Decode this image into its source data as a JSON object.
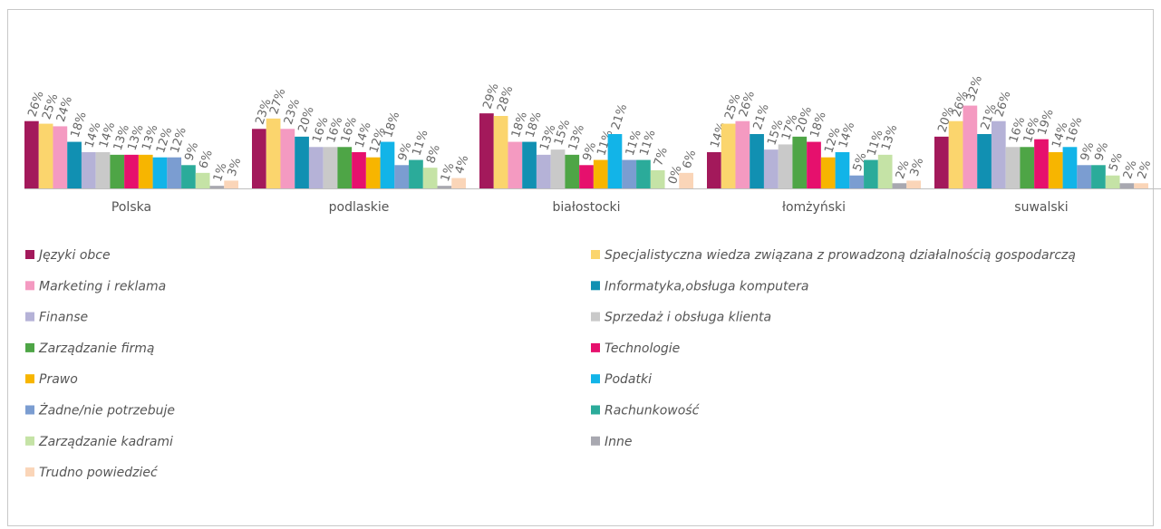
{
  "chart_data": {
    "type": "bar",
    "categories": [
      "Polska",
      "podlaskie",
      "białostocki",
      "łomżyński",
      "suwalski"
    ],
    "ylim": [
      0,
      35
    ],
    "series": [
      {
        "name": "Języki obce",
        "color": "#a3195b",
        "values": [
          26,
          23,
          29,
          14,
          20
        ],
        "value_labels": [
          "26%",
          "23%",
          "29%",
          "14%",
          "20%"
        ]
      },
      {
        "name": "Specjalistyczna wiedza związana z prowadzoną działalnością gospodarczą",
        "color": "#fbd56d",
        "values": [
          25,
          27,
          28,
          25,
          26
        ],
        "value_labels": [
          "25%",
          "27%",
          "28%",
          "25%",
          "26%"
        ]
      },
      {
        "name": "Marketing i reklama",
        "color": "#f49ac1",
        "values": [
          24,
          23,
          18,
          26,
          32
        ],
        "value_labels": [
          "24%",
          "23%",
          "18%",
          "26%",
          "32%"
        ]
      },
      {
        "name": "Informatyka,obsługa komputera",
        "color": "#1190b2",
        "values": [
          18,
          20,
          18,
          21,
          21
        ],
        "value_labels": [
          "18%",
          "20%",
          "18%",
          "21%",
          "21%"
        ]
      },
      {
        "name": "Finanse",
        "color": "#b5b2d7",
        "values": [
          14,
          16,
          13,
          15,
          26
        ],
        "value_labels": [
          "14%",
          "16%",
          "13%",
          "15%",
          "26%"
        ]
      },
      {
        "name": "Sprzedaż i obsługa klienta",
        "color": "#c9c9c9",
        "values": [
          14,
          16,
          15,
          17,
          16
        ],
        "value_labels": [
          "14%",
          "16%",
          "15%",
          "17%",
          "16%"
        ]
      },
      {
        "name": " Zarządzanie firmą",
        "color": "#4ea546",
        "values": [
          13,
          16,
          13,
          20,
          16
        ],
        "value_labels": [
          "13%",
          "16%",
          "13%",
          "20%",
          "16%"
        ]
      },
      {
        "name": "Technologie",
        "color": "#e6106d",
        "values": [
          13,
          14,
          9,
          18,
          19
        ],
        "value_labels": [
          "13%",
          "14%",
          "9%",
          "18%",
          "19%"
        ]
      },
      {
        "name": "Prawo",
        "color": "#f7b500",
        "values": [
          13,
          12,
          11,
          12,
          14
        ],
        "value_labels": [
          "13%",
          "12%",
          "11%",
          "12%",
          "14%"
        ]
      },
      {
        "name": "Podatki",
        "color": "#12b4e8",
        "values": [
          12,
          18,
          21,
          14,
          16
        ],
        "value_labels": [
          "12%",
          "18%",
          "21%",
          "14%",
          "16%"
        ]
      },
      {
        "name": "Żadne/nie potrzebuje",
        "color": "#7b9dd1",
        "values": [
          12,
          9,
          11,
          5,
          9
        ],
        "value_labels": [
          "12%",
          "9%",
          "11%",
          "5%",
          "9%"
        ]
      },
      {
        "name": "Rachunkowość",
        "color": "#2bab9a",
        "values": [
          9,
          11,
          11,
          11,
          9
        ],
        "value_labels": [
          "9%",
          "11%",
          "11%",
          "11%",
          "9%"
        ]
      },
      {
        "name": " Zarządzanie kadrami",
        "color": "#c5e3a6",
        "values": [
          6,
          8,
          7,
          13,
          5
        ],
        "value_labels": [
          "6%",
          "8%",
          "7%",
          "13%",
          "5%"
        ]
      },
      {
        "name": " Inne",
        "color": "#a8a8b0",
        "values": [
          1,
          1,
          0,
          2,
          2
        ],
        "value_labels": [
          "1%",
          "1%",
          "0%",
          "2%",
          "2%"
        ]
      },
      {
        "name": "Trudno powiedzieć",
        "color": "#fad5b8",
        "values": [
          3,
          4,
          6,
          3,
          2
        ],
        "value_labels": [
          "3%",
          "4%",
          "6%",
          "3%",
          "2%"
        ]
      }
    ]
  }
}
